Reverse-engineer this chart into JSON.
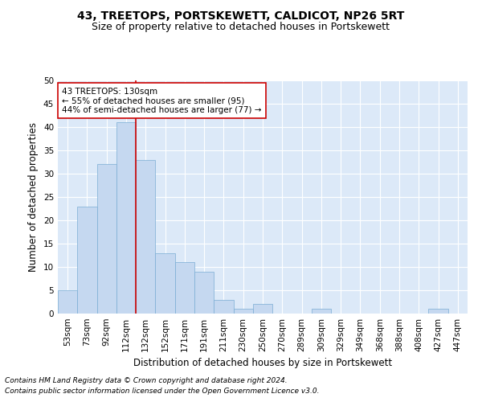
{
  "title": "43, TREETOPS, PORTSKEWETT, CALDICOT, NP26 5RT",
  "subtitle": "Size of property relative to detached houses in Portskewett",
  "xlabel": "Distribution of detached houses by size in Portskewett",
  "ylabel": "Number of detached properties",
  "bar_color": "#c5d8f0",
  "bar_edge_color": "#7aadd4",
  "categories": [
    "53sqm",
    "73sqm",
    "92sqm",
    "112sqm",
    "132sqm",
    "152sqm",
    "171sqm",
    "191sqm",
    "211sqm",
    "230sqm",
    "250sqm",
    "270sqm",
    "289sqm",
    "309sqm",
    "329sqm",
    "349sqm",
    "368sqm",
    "388sqm",
    "408sqm",
    "427sqm",
    "447sqm"
  ],
  "values": [
    5,
    23,
    32,
    41,
    33,
    13,
    11,
    9,
    3,
    1,
    2,
    0,
    0,
    1,
    0,
    0,
    0,
    0,
    0,
    1,
    0
  ],
  "ylim": [
    0,
    50
  ],
  "yticks": [
    0,
    5,
    10,
    15,
    20,
    25,
    30,
    35,
    40,
    45,
    50
  ],
  "property_line_color": "#cc0000",
  "annotation_line1": "43 TREETOPS: 130sqm",
  "annotation_line2": "← 55% of detached houses are smaller (95)",
  "annotation_line3": "44% of semi-detached houses are larger (77) →",
  "annotation_box_color": "#ffffff",
  "annotation_box_edge_color": "#cc0000",
  "footnote1": "Contains HM Land Registry data © Crown copyright and database right 2024.",
  "footnote2": "Contains public sector information licensed under the Open Government Licence v3.0.",
  "background_color": "#dce9f8",
  "grid_color": "#ffffff",
  "title_fontsize": 10,
  "subtitle_fontsize": 9,
  "xlabel_fontsize": 8.5,
  "ylabel_fontsize": 8.5,
  "tick_fontsize": 7.5,
  "annotation_fontsize": 7.5,
  "footnote_fontsize": 6.5
}
